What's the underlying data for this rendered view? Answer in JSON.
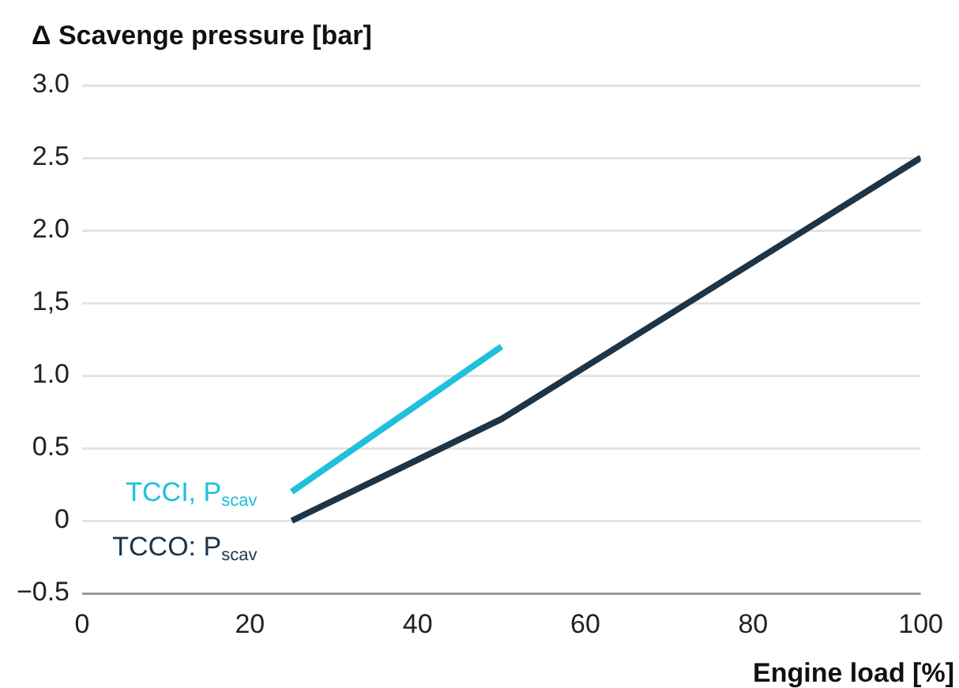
{
  "chart_data": {
    "type": "line",
    "xlabel": "Engine load [%]",
    "ylabel": "Δ Scavenge pressure [bar]",
    "series": [
      {
        "name": "TCCI, P$_{scav}$",
        "color": "#1fc0dc",
        "x": [
          25,
          50
        ],
        "values": [
          0.2,
          1.2
        ]
      },
      {
        "name": "TCCO: P$_{scav}$",
        "color": "#1e3447",
        "x": [
          25,
          50,
          100
        ],
        "values": [
          0,
          0.7,
          2.5
        ]
      }
    ],
    "xlim": [
      0,
      100
    ],
    "xticks": [
      0,
      20,
      40,
      60,
      80,
      100
    ],
    "ylim": [
      -0.5,
      3.0
    ],
    "yticks": [
      {
        "value": -0.5,
        "label": "−0.5"
      },
      0,
      {
        "value": 0.5,
        "label": "0.5"
      },
      {
        "value": 1.0,
        "label": "1.0"
      },
      {
        "value": 1.5,
        "label": "1,5"
      },
      {
        "value": 2.0,
        "label": "2.0"
      },
      {
        "value": 2.5,
        "label": "2.5"
      },
      {
        "value": 3.0,
        "label": "3.0"
      }
    ],
    "grid": "y",
    "legend": false,
    "marker": "none",
    "line_style": "solid"
  }
}
